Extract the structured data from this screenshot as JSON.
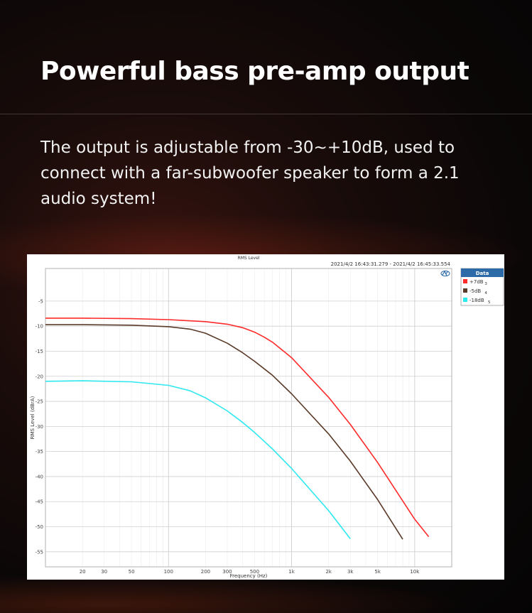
{
  "headline": "Powerful bass pre-amp output",
  "description": "The output is adjustable from -30~+10dB, used to connect with a far-subwoofer speaker to form a 2.1 audio system!",
  "chart_data": {
    "type": "line",
    "title": "RMS Level",
    "timestamp": "2021/4/2 16:43:31.279 -  2021/4/2 16:45:33.554",
    "xlabel": "Frequency (Hz)",
    "ylabel": "RMS Level (dBrA)",
    "x_scale": "log",
    "xlim": [
      10,
      20000
    ],
    "ylim": [
      -58,
      1.5
    ],
    "grid": true,
    "legend_title": "Data",
    "legend_position": "right",
    "x_ticks": [
      {
        "v": 20,
        "label": "20"
      },
      {
        "v": 30,
        "label": "30"
      },
      {
        "v": 50,
        "label": "50"
      },
      {
        "v": 100,
        "label": "100"
      },
      {
        "v": 200,
        "label": "200"
      },
      {
        "v": 300,
        "label": "300"
      },
      {
        "v": 500,
        "label": "500"
      },
      {
        "v": 1000,
        "label": "1k"
      },
      {
        "v": 2000,
        "label": "2k"
      },
      {
        "v": 3000,
        "label": "3k"
      },
      {
        "v": 5000,
        "label": "5k"
      },
      {
        "v": 10000,
        "label": "10k"
      }
    ],
    "y_ticks": [
      -5,
      -10,
      -15,
      -20,
      -25,
      -30,
      -35,
      -40,
      -45,
      -50,
      -55
    ],
    "series": [
      {
        "name": "+7dB",
        "index": "3",
        "color": "#ff2a2a",
        "x": [
          10,
          20,
          50,
          100,
          200,
          300,
          400,
          500,
          600,
          700,
          1000,
          2000,
          3000,
          5000,
          10000,
          13000
        ],
        "y": [
          -8.4,
          -8.4,
          -8.5,
          -8.7,
          -9.1,
          -9.6,
          -10.3,
          -11.2,
          -12.2,
          -13.2,
          -16.3,
          -24.2,
          -29.6,
          -37.2,
          -48.5,
          -52.0
        ]
      },
      {
        "name": "-5dB",
        "index": "4",
        "color": "#5a3a28",
        "x": [
          10,
          20,
          50,
          100,
          150,
          200,
          300,
          400,
          500,
          700,
          1000,
          2000,
          3000,
          5000,
          8000
        ],
        "y": [
          -9.7,
          -9.7,
          -9.8,
          -10.1,
          -10.6,
          -11.4,
          -13.4,
          -15.3,
          -17.0,
          -19.8,
          -23.5,
          -31.5,
          -36.9,
          -44.6,
          -52.5
        ]
      },
      {
        "name": "-18dB",
        "index": "5",
        "color": "#2ee8f0",
        "x": [
          10,
          20,
          50,
          100,
          150,
          200,
          300,
          400,
          500,
          700,
          1000,
          2000,
          3000
        ],
        "y": [
          -21.0,
          -20.9,
          -21.1,
          -21.8,
          -22.9,
          -24.3,
          -26.9,
          -29.2,
          -31.2,
          -34.5,
          -38.4,
          -46.8,
          -52.4
        ]
      }
    ],
    "colors": {
      "plot_border": "#b0b0b0",
      "grid_major": "#cfcfcf",
      "grid_minor": "#ececec",
      "legend_header": "#2c6aa8"
    },
    "icon": "ap-logo-icon"
  }
}
